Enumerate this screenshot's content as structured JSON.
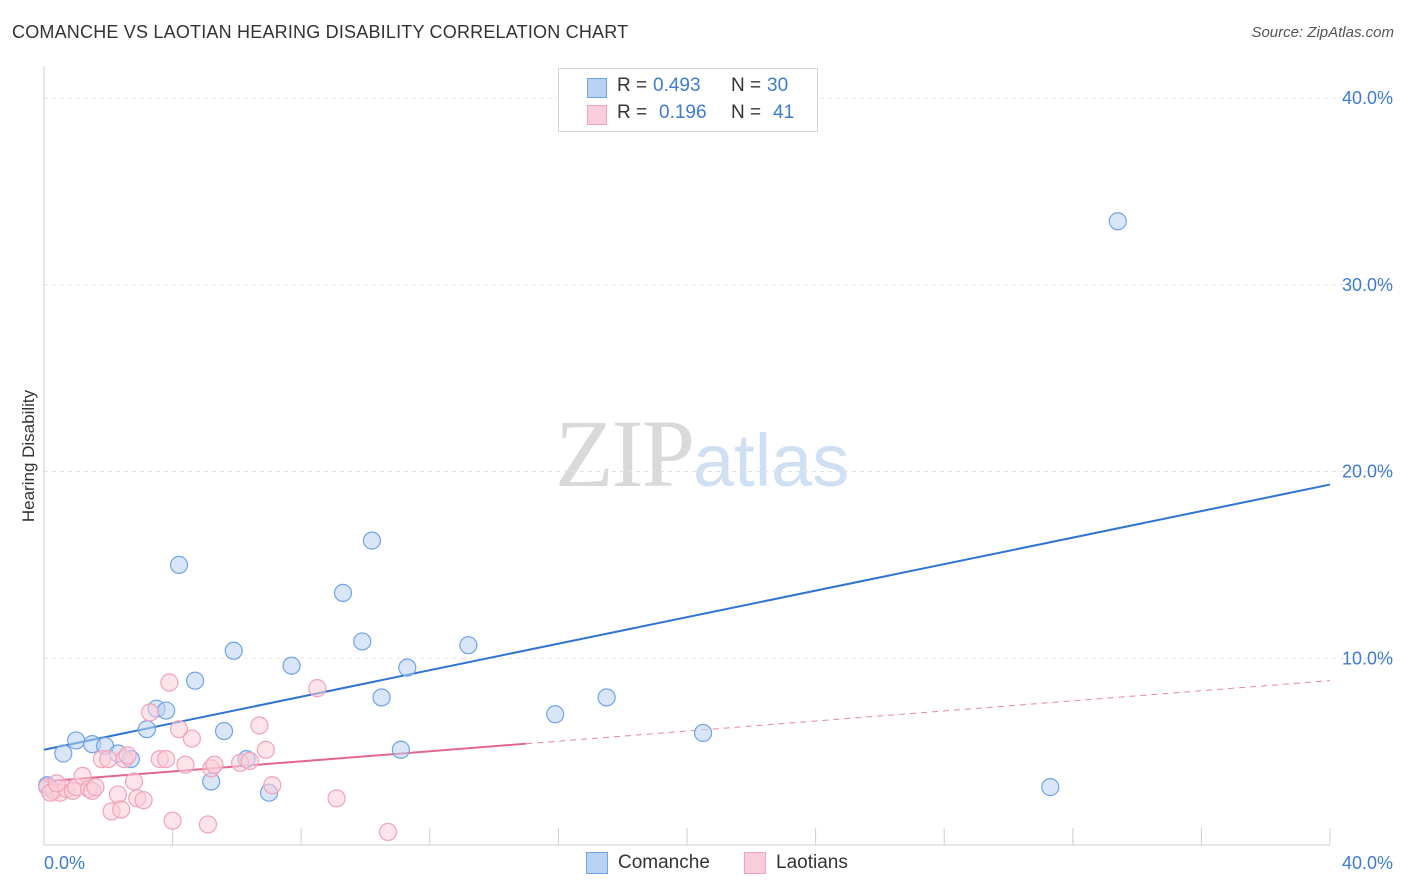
{
  "header": {
    "title": "COMANCHE VS LAOTIAN HEARING DISABILITY CORRELATION CHART",
    "source": "Source: ZipAtlas.com"
  },
  "watermark": {
    "zip": "ZIP",
    "atlas": "atlas"
  },
  "legend": {
    "rows": [
      {
        "r_label": "R =",
        "r_value": "0.493",
        "n_label": "N =",
        "n_value": "30"
      },
      {
        "r_label": "R =",
        "r_value": "0.196",
        "n_label": "N =",
        "n_value": "41"
      }
    ]
  },
  "bottom_legend": {
    "series1": "Comanche",
    "series2": "Laotians"
  },
  "chart_data": {
    "type": "scatter",
    "ylabel": "Hearing Disability",
    "xlabel": "",
    "x_tick_labels": [
      "0.0%",
      "40.0%"
    ],
    "y_tick_labels": [
      "10.0%",
      "20.0%",
      "30.0%",
      "40.0%"
    ],
    "xlim": [
      0,
      40
    ],
    "ylim": [
      0,
      41.5
    ],
    "grid": true,
    "legend_placement": "top-center",
    "series": [
      {
        "name": "Comanche",
        "color": "#6fa3e8",
        "fill": "#b9d2f3",
        "trend_color": "#2f74d0",
        "trend": {
          "x": [
            0,
            40
          ],
          "y": [
            5.1,
            19.3
          ],
          "dashed_from": null
        },
        "points": [
          [
            0.1,
            3.2
          ],
          [
            0.6,
            4.9
          ],
          [
            1.0,
            5.6
          ],
          [
            1.5,
            5.4
          ],
          [
            1.9,
            5.3
          ],
          [
            2.3,
            4.9
          ],
          [
            2.7,
            4.6
          ],
          [
            3.2,
            6.2
          ],
          [
            3.5,
            7.3
          ],
          [
            3.8,
            7.2
          ],
          [
            4.2,
            15.0
          ],
          [
            4.7,
            8.8
          ],
          [
            5.2,
            3.4
          ],
          [
            5.6,
            6.1
          ],
          [
            5.9,
            10.4
          ],
          [
            6.3,
            4.6
          ],
          [
            7.0,
            2.8
          ],
          [
            7.7,
            9.6
          ],
          [
            9.3,
            13.5
          ],
          [
            9.9,
            10.9
          ],
          [
            10.2,
            16.3
          ],
          [
            10.5,
            7.9
          ],
          [
            11.1,
            5.1
          ],
          [
            11.3,
            9.5
          ],
          [
            13.2,
            10.7
          ],
          [
            15.9,
            7.0
          ],
          [
            17.5,
            7.9
          ],
          [
            20.5,
            6.0
          ],
          [
            31.3,
            3.1
          ],
          [
            33.4,
            33.4
          ]
        ]
      },
      {
        "name": "Laotians",
        "color": "#f2a2bb",
        "fill": "#f9cdd9",
        "trend_color": "#e36690",
        "trend": {
          "x": [
            0,
            40
          ],
          "y": [
            3.4,
            8.8
          ],
          "dashed_from": 15.0
        },
        "points": [
          [
            0.1,
            3.1
          ],
          [
            0.3,
            2.9
          ],
          [
            0.5,
            2.8
          ],
          [
            0.7,
            3.0
          ],
          [
            0.9,
            2.9
          ],
          [
            1.0,
            3.1
          ],
          [
            1.2,
            3.7
          ],
          [
            1.4,
            3.0
          ],
          [
            1.5,
            2.9
          ],
          [
            1.6,
            3.1
          ],
          [
            1.8,
            4.6
          ],
          [
            2.0,
            4.6
          ],
          [
            2.1,
            1.8
          ],
          [
            2.3,
            2.7
          ],
          [
            2.4,
            1.9
          ],
          [
            2.5,
            4.6
          ],
          [
            2.6,
            4.8
          ],
          [
            2.8,
            3.4
          ],
          [
            2.9,
            2.5
          ],
          [
            3.1,
            2.4
          ],
          [
            3.3,
            7.1
          ],
          [
            3.6,
            4.6
          ],
          [
            3.8,
            4.6
          ],
          [
            3.9,
            8.7
          ],
          [
            4.0,
            1.3
          ],
          [
            4.2,
            6.2
          ],
          [
            4.4,
            4.3
          ],
          [
            4.6,
            5.7
          ],
          [
            5.1,
            1.1
          ],
          [
            5.2,
            4.1
          ],
          [
            5.3,
            4.3
          ],
          [
            6.1,
            4.4
          ],
          [
            6.4,
            4.5
          ],
          [
            6.7,
            6.4
          ],
          [
            6.9,
            5.1
          ],
          [
            7.1,
            3.2
          ],
          [
            8.5,
            8.4
          ],
          [
            9.1,
            2.5
          ],
          [
            10.7,
            0.7
          ],
          [
            0.2,
            2.8
          ],
          [
            0.4,
            3.3
          ]
        ]
      }
    ]
  }
}
